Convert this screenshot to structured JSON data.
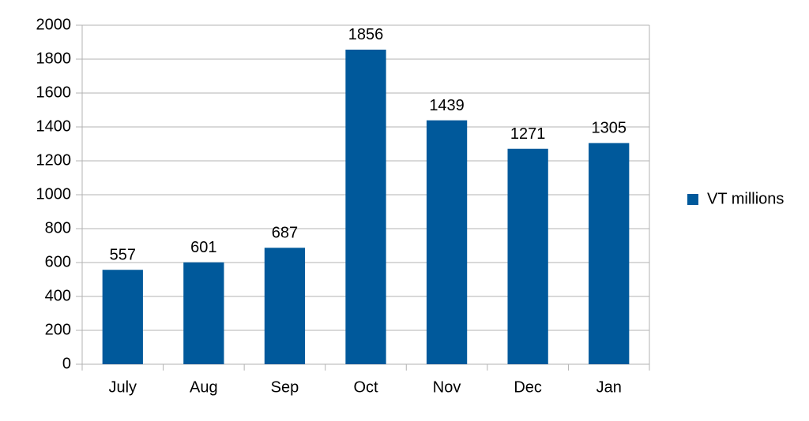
{
  "chart_data": {
    "type": "bar",
    "categories": [
      "July",
      "Aug",
      "Sep",
      "Oct",
      "Nov",
      "Dec",
      "Jan"
    ],
    "series": [
      {
        "name": "VT millions",
        "color": "#00599b",
        "values": [
          557,
          601,
          687,
          1856,
          1439,
          1271,
          1305
        ]
      }
    ],
    "ylim": [
      0,
      2000
    ],
    "yticks": [
      0,
      200,
      400,
      600,
      800,
      1000,
      1200,
      1400,
      1600,
      1800,
      2000
    ],
    "grid": true,
    "legend": "right",
    "data_labels": true
  }
}
